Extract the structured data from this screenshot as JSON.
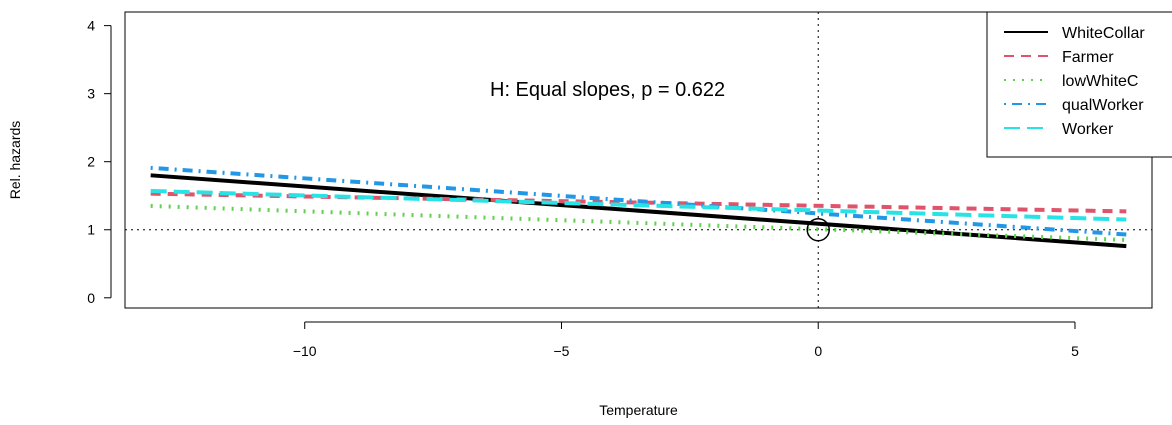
{
  "chart_data": {
    "type": "line",
    "xlabel": "Temperature",
    "ylabel": "Rel. hazards",
    "xlim": [
      -13.5,
      6.5
    ],
    "ylim": [
      -0.15,
      4.2
    ],
    "x_ticks": [
      -10,
      -5,
      0,
      5
    ],
    "x_tick_labels": [
      "−10",
      "−5",
      "0",
      "5"
    ],
    "y_ticks": [
      0,
      1,
      2,
      3,
      4
    ],
    "y_tick_labels": [
      "0",
      "1",
      "2",
      "3",
      "4"
    ],
    "annotation": "H: Equal slopes, p =  0.622",
    "reference_lines": {
      "horizontal_y": 1,
      "vertical_x": 0,
      "style": "dotted"
    },
    "reference_point": {
      "x": 0,
      "y": 1,
      "marker": "open-circle"
    },
    "legend_position": "top-right",
    "series": [
      {
        "name": "WhiteCollar",
        "color": "#000000",
        "dash": "solid",
        "x": [
          -13,
          6
        ],
        "values": [
          1.8,
          0.76
        ]
      },
      {
        "name": "Farmer",
        "color": "#DF536B",
        "dash": "dashed",
        "x": [
          -13,
          6
        ],
        "values": [
          1.53,
          1.27
        ]
      },
      {
        "name": "lowWhiteC",
        "color": "#61D04F",
        "dash": "dotted",
        "x": [
          -13,
          6
        ],
        "values": [
          1.35,
          0.85
        ]
      },
      {
        "name": "qualWorker",
        "color": "#2297E6",
        "dash": "dotdash",
        "x": [
          -13,
          6
        ],
        "values": [
          1.91,
          0.93
        ]
      },
      {
        "name": "Worker",
        "color": "#28E2E5",
        "dash": "longdash",
        "x": [
          -13,
          6
        ],
        "values": [
          1.57,
          1.15
        ]
      }
    ]
  }
}
